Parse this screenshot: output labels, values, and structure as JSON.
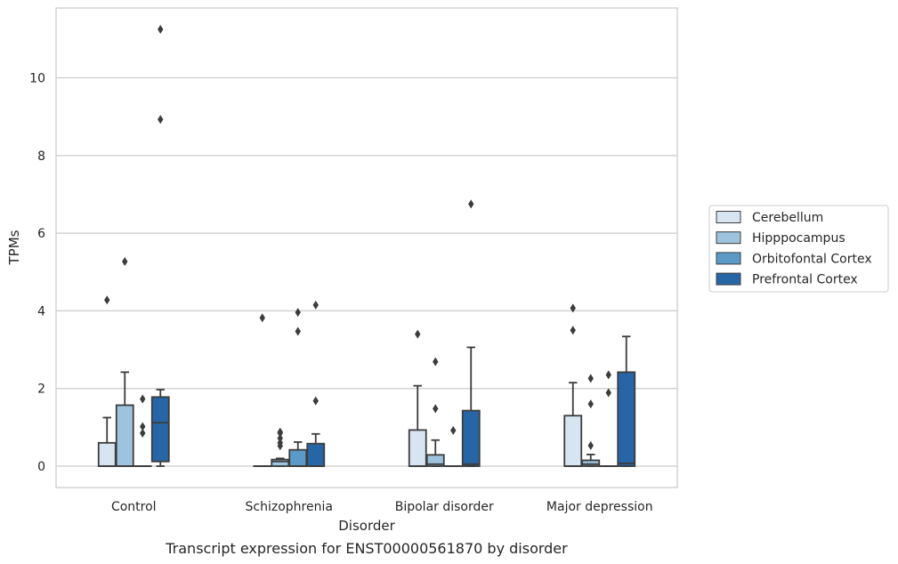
{
  "chart_data": {
    "type": "box",
    "title": "",
    "caption": "Transcript expression for ENST00000561870 by disorder",
    "xlabel": "Disorder",
    "ylabel": "TPMs",
    "ylim": [
      -0.55,
      11.8
    ],
    "yticks": [
      0,
      2,
      4,
      6,
      8,
      10
    ],
    "grid": "horizontal",
    "legend_position": "right",
    "categories": [
      "Control",
      "Schizophrenia",
      "Bipolar disorder",
      "Major depression"
    ],
    "series": [
      {
        "name": "Cerebellum",
        "color": "#d7e5f3",
        "boxes": [
          {
            "q1": 0.0,
            "median": 0.0,
            "q3": 0.6,
            "whisker_low": 0.0,
            "whisker_high": 1.25,
            "outliers": [
              4.28
            ]
          },
          {
            "q1": 0.0,
            "median": 0.0,
            "q3": 0.0,
            "whisker_low": 0.0,
            "whisker_high": 0.0,
            "outliers": [
              3.82
            ]
          },
          {
            "q1": 0.0,
            "median": 0.0,
            "q3": 0.93,
            "whisker_low": 0.0,
            "whisker_high": 2.07,
            "outliers": [
              3.4
            ]
          },
          {
            "q1": 0.0,
            "median": 0.0,
            "q3": 1.3,
            "whisker_low": 0.0,
            "whisker_high": 2.15,
            "outliers": [
              3.5,
              4.07
            ]
          }
        ]
      },
      {
        "name": "Hipppocampus",
        "color": "#9dc3df",
        "boxes": [
          {
            "q1": 0.0,
            "median": 0.0,
            "q3": 1.57,
            "whisker_low": 0.0,
            "whisker_high": 2.42,
            "outliers": [
              5.27
            ]
          },
          {
            "q1": 0.0,
            "median": 0.12,
            "q3": 0.17,
            "whisker_low": 0.0,
            "whisker_high": 0.2,
            "outliers": [
              0.52,
              0.6,
              0.72,
              0.85,
              0.88
            ]
          },
          {
            "q1": 0.0,
            "median": 0.05,
            "q3": 0.29,
            "whisker_low": 0.0,
            "whisker_high": 0.67,
            "outliers": [
              1.48,
              2.69
            ]
          },
          {
            "q1": 0.0,
            "median": 0.05,
            "q3": 0.15,
            "whisker_low": 0.0,
            "whisker_high": 0.3,
            "outliers": [
              0.53,
              1.6,
              2.26
            ]
          }
        ]
      },
      {
        "name": "Orbitofontal Cortex",
        "color": "#5b9ac8",
        "boxes": [
          {
            "q1": 0.0,
            "median": 0.0,
            "q3": 0.0,
            "whisker_low": 0.0,
            "whisker_high": 0.0,
            "outliers": [
              0.85,
              1.02,
              1.73
            ]
          },
          {
            "q1": 0.0,
            "median": 0.0,
            "q3": 0.42,
            "whisker_low": 0.0,
            "whisker_high": 0.62,
            "outliers": [
              3.47,
              3.96
            ]
          },
          {
            "q1": 0.0,
            "median": 0.0,
            "q3": 0.0,
            "whisker_low": 0.0,
            "whisker_high": 0.0,
            "outliers": [
              0.92
            ]
          },
          {
            "q1": 0.0,
            "median": 0.0,
            "q3": 0.0,
            "whisker_low": 0.0,
            "whisker_high": 0.0,
            "outliers": [
              1.89,
              2.35
            ]
          }
        ]
      },
      {
        "name": "Prefrontal Cortex",
        "color": "#2766a6",
        "boxes": [
          {
            "q1": 0.12,
            "median": 1.12,
            "q3": 1.78,
            "whisker_low": 0.0,
            "whisker_high": 1.97,
            "outliers": [
              8.93,
              11.25
            ]
          },
          {
            "q1": 0.0,
            "median": 0.0,
            "q3": 0.58,
            "whisker_low": 0.0,
            "whisker_high": 0.83,
            "outliers": [
              1.68,
              4.15
            ]
          },
          {
            "q1": 0.0,
            "median": 0.05,
            "q3": 1.43,
            "whisker_low": 0.0,
            "whisker_high": 3.06,
            "outliers": [
              6.75
            ]
          },
          {
            "q1": 0.0,
            "median": 0.07,
            "q3": 2.42,
            "whisker_low": 0.0,
            "whisker_high": 3.34,
            "outliers": []
          }
        ]
      }
    ]
  }
}
